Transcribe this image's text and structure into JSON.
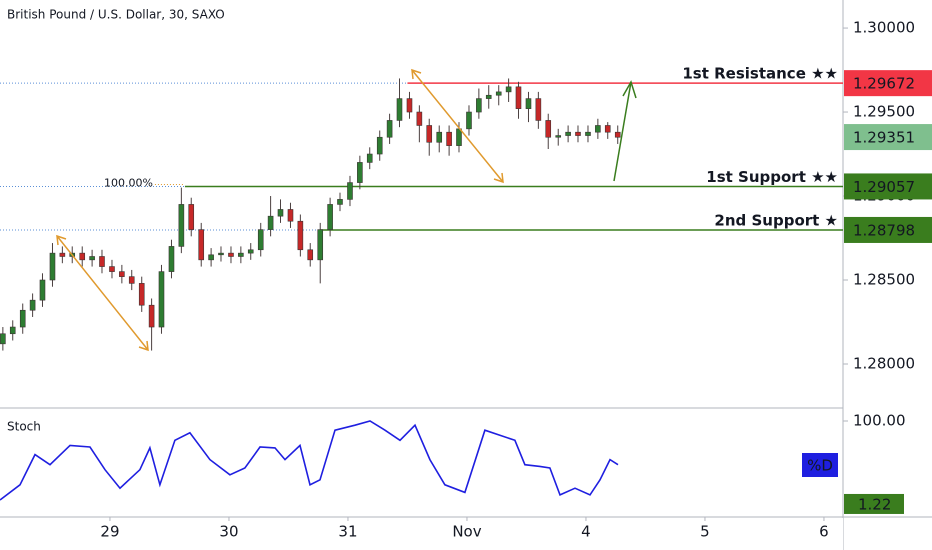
{
  "chart_data": [
    {
      "type": "candlestick",
      "title": "British Pound / U.S. Dollar, 30, SAXO",
      "x": [
        0.1,
        0.183,
        0.267,
        0.35,
        0.433,
        0.517,
        0.6,
        0.683,
        0.767,
        0.85,
        0.933,
        1.017,
        1.1,
        1.183,
        1.267,
        1.35,
        1.433,
        1.517,
        1.6,
        1.683,
        1.767,
        1.85,
        1.933,
        2.017,
        2.1,
        2.183,
        2.267,
        2.35,
        2.433,
        2.517,
        2.6,
        2.683,
        2.767,
        2.85,
        2.933,
        3.017,
        3.1,
        3.183,
        3.267,
        3.35,
        3.433,
        3.517,
        3.6,
        3.683,
        3.767,
        3.85,
        3.933,
        4.017,
        4.1,
        4.183,
        4.267,
        4.35,
        4.433,
        4.517,
        4.6,
        4.683,
        4.767,
        4.85,
        4.933,
        5.017,
        5.1,
        5.183,
        5.267
      ],
      "open": [
        1.2812,
        1.2818,
        1.2822,
        1.2832,
        1.2838,
        1.285,
        1.2866,
        1.2864,
        1.2866,
        1.2862,
        1.2864,
        1.2858,
        1.2855,
        1.2852,
        1.2848,
        1.2835,
        1.2822,
        1.2855,
        1.287,
        1.2895,
        1.288,
        1.2862,
        1.2865,
        1.2866,
        1.2864,
        1.2866,
        1.2868,
        1.288,
        1.2888,
        1.2892,
        1.2885,
        1.2868,
        1.2862,
        1.288,
        1.2895,
        1.2898,
        1.2908,
        1.292,
        1.2925,
        1.2935,
        1.2945,
        1.2958,
        1.295,
        1.2942,
        1.2932,
        1.2938,
        1.293,
        1.294,
        1.295,
        1.2958,
        1.296,
        1.2962,
        1.2965,
        1.2952,
        1.2958,
        1.2945,
        1.2935,
        1.2936,
        1.2938,
        1.2936,
        1.2938,
        1.2942,
        1.2938
      ],
      "high": [
        1.2822,
        1.2826,
        1.2836,
        1.2842,
        1.2854,
        1.2872,
        1.287,
        1.287,
        1.287,
        1.2868,
        1.2868,
        1.2862,
        1.2859,
        1.2856,
        1.2852,
        1.2839,
        1.2859,
        1.2874,
        1.2905,
        1.2899,
        1.2884,
        1.2869,
        1.287,
        1.287,
        1.287,
        1.2872,
        1.2884,
        1.29,
        1.2898,
        1.2896,
        1.2889,
        1.2872,
        1.2884,
        1.2899,
        1.2902,
        1.2912,
        1.2924,
        1.2929,
        1.2939,
        1.2949,
        1.297,
        1.2962,
        1.2954,
        1.2946,
        1.2942,
        1.2942,
        1.2944,
        1.2954,
        1.2964,
        1.2966,
        1.2966,
        1.297,
        1.2968,
        1.2962,
        1.2962,
        1.2949,
        1.294,
        1.2942,
        1.2942,
        1.2942,
        1.2946,
        1.2944,
        1.2942
      ],
      "low": [
        1.2808,
        1.2814,
        1.2818,
        1.2828,
        1.2834,
        1.2846,
        1.286,
        1.286,
        1.2858,
        1.2858,
        1.2854,
        1.2851,
        1.2848,
        1.2844,
        1.2831,
        1.2808,
        1.2818,
        1.2851,
        1.2866,
        1.2876,
        1.2858,
        1.2858,
        1.2861,
        1.286,
        1.286,
        1.2862,
        1.2864,
        1.2876,
        1.2884,
        1.2881,
        1.2864,
        1.2858,
        1.2848,
        1.2876,
        1.2891,
        1.2894,
        1.2904,
        1.2916,
        1.2921,
        1.2931,
        1.2941,
        1.2946,
        1.2932,
        1.2924,
        1.2926,
        1.2924,
        1.2926,
        1.2936,
        1.2946,
        1.2952,
        1.2954,
        1.2956,
        1.2946,
        1.2944,
        1.294,
        1.2928,
        1.293,
        1.2932,
        1.2932,
        1.2932,
        1.2934,
        1.2934,
        1.2931
      ],
      "close": [
        1.2818,
        1.2822,
        1.2832,
        1.2838,
        1.285,
        1.2866,
        1.2864,
        1.2866,
        1.2862,
        1.2864,
        1.2858,
        1.2855,
        1.2852,
        1.2848,
        1.2835,
        1.2822,
        1.2855,
        1.287,
        1.2895,
        1.288,
        1.2862,
        1.2865,
        1.2866,
        1.2864,
        1.2866,
        1.2868,
        1.288,
        1.2888,
        1.2892,
        1.2885,
        1.2868,
        1.2862,
        1.288,
        1.2895,
        1.2898,
        1.2908,
        1.292,
        1.2925,
        1.2935,
        1.2945,
        1.2958,
        1.295,
        1.2942,
        1.2932,
        1.2938,
        1.293,
        1.294,
        1.295,
        1.2958,
        1.296,
        1.2962,
        1.2965,
        1.2952,
        1.2958,
        1.2945,
        1.2935,
        1.2936,
        1.2938,
        1.2936,
        1.2938,
        1.2942,
        1.2938,
        1.2935
      ],
      "up_color": "#2e7d32",
      "down_color": "#c62828",
      "xlim": [
        0.076,
        7.16
      ],
      "ylim": [
        1.27738,
        1.30167
      ],
      "xticks": [
        {
          "value": 1,
          "label": "29"
        },
        {
          "value": 2,
          "label": "30"
        },
        {
          "value": 3,
          "label": "31"
        },
        {
          "value": 4,
          "label": "Nov"
        },
        {
          "value": 5,
          "label": "4"
        },
        {
          "value": 6,
          "label": "5"
        },
        {
          "value": 7,
          "label": "6"
        }
      ],
      "yticks": [
        {
          "value": 1.28,
          "label": "1.28000"
        },
        {
          "value": 1.285,
          "label": "1.28500"
        },
        {
          "value": 1.29,
          "label": "1.29000"
        },
        {
          "value": 1.295,
          "label": "1.29500"
        },
        {
          "value": 1.3,
          "label": "1.30000"
        }
      ],
      "levels": [
        {
          "name": "1st Resistance ★★",
          "value": 1.29672,
          "from": 3.5,
          "color": "#f23645"
        },
        {
          "name": "1st Support ★★",
          "value": 1.29057,
          "from": 1.63,
          "color": "#3a7d1e"
        },
        {
          "name": "2nd Support ★",
          "value": 1.28798,
          "from": 2.77,
          "color": "#3a7d1e"
        }
      ],
      "fib_label": "100.00%",
      "last_price": 1.29351,
      "last_price_color": "#7fbf8e"
    },
    {
      "type": "line",
      "title": "Stoch",
      "legend": "%D",
      "color": "#1f1fe0",
      "x": [
        0.076,
        0.244,
        0.37,
        0.496,
        0.664,
        0.832,
        0.958,
        1.084,
        1.252,
        1.336,
        1.42,
        1.546,
        1.672,
        1.84,
        2.008,
        2.134,
        2.261,
        2.387,
        2.471,
        2.597,
        2.681,
        2.765,
        2.891,
        3.059,
        3.185,
        3.311,
        3.437,
        3.563,
        3.689,
        3.815,
        3.983,
        4.151,
        4.277,
        4.403,
        4.487,
        4.613,
        4.697,
        4.782,
        4.908,
        5.034,
        5.118,
        5.202,
        5.269
      ],
      "values": [
        6,
        24,
        60,
        48,
        71,
        69,
        42,
        20,
        42,
        68,
        24,
        77,
        86,
        54,
        36,
        44,
        69,
        68,
        54,
        71,
        24,
        30,
        89,
        95,
        100,
        89,
        77,
        95,
        54,
        24,
        15,
        89,
        83,
        77,
        48,
        46,
        44,
        12,
        20,
        12,
        30,
        54,
        48
      ],
      "ylim": [
        -14.3,
        113.1
      ],
      "yticks": [
        {
          "value": 100,
          "label": "100.00"
        }
      ],
      "value_box": {
        "value": 1.22,
        "label": "1.22"
      }
    }
  ]
}
